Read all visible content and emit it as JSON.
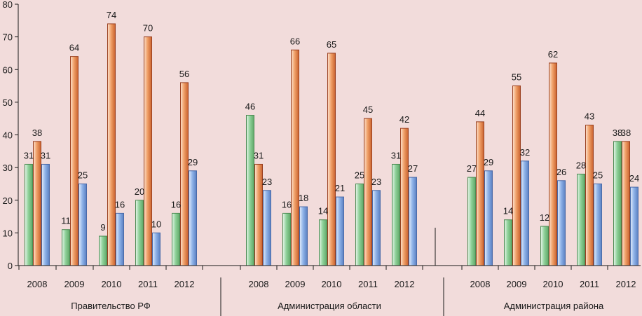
{
  "chart_data": {
    "type": "bar",
    "ylim": [
      0,
      80
    ],
    "ytick_step": 10,
    "grid": false,
    "legend": "none",
    "colors": [
      "#8fd19a",
      "#f0a068",
      "#8fb3e8"
    ],
    "stroke_colors": [
      "#4c8a52",
      "#9a4020",
      "#4a6aa8"
    ],
    "groups": [
      {
        "label": "Правительство РФ",
        "categories": [
          "2008",
          "2009",
          "2010",
          "2011",
          "2012"
        ],
        "series": [
          {
            "values": [
              31,
              11,
              9,
              20,
              16
            ]
          },
          {
            "values": [
              38,
              64,
              74,
              70,
              56
            ]
          },
          {
            "values": [
              31,
              25,
              16,
              10,
              29
            ]
          }
        ]
      },
      {
        "label": "Администрация области",
        "categories": [
          "2008",
          "2009",
          "2010",
          "2011",
          "2012"
        ],
        "series": [
          {
            "values": [
              46,
              16,
              14,
              25,
              31
            ]
          },
          {
            "values": [
              31,
              66,
              65,
              45,
              42
            ]
          },
          {
            "values": [
              23,
              18,
              21,
              23,
              27
            ]
          }
        ]
      },
      {
        "label": "Администрация района",
        "categories": [
          "2008",
          "2009",
          "2010",
          "2011",
          "2012"
        ],
        "series": [
          {
            "values": [
              27,
              14,
              12,
              28,
              38
            ]
          },
          {
            "values": [
              44,
              55,
              62,
              43,
              38
            ]
          },
          {
            "values": [
              29,
              32,
              26,
              25,
              24
            ]
          }
        ]
      }
    ]
  }
}
